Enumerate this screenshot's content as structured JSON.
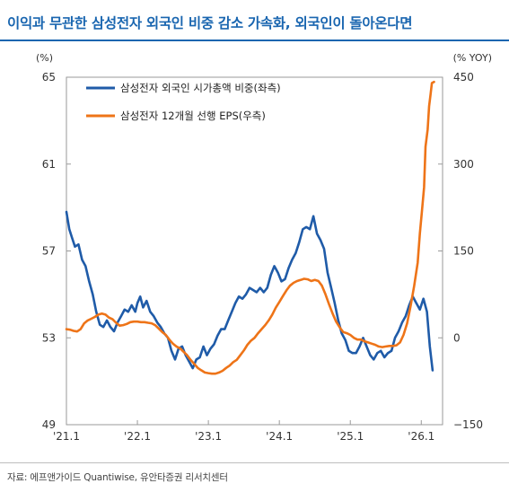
{
  "title": "이익과 무관한 삼성전자 외국인 비중 감소 가속화, 외국인이 돌아온다면",
  "source": "자료: 에프앤가이드 Quantiwise, 유안타증권 리서치센터",
  "chart_data": {
    "type": "line",
    "left_axis": {
      "unit": "(%)",
      "ylim": [
        49,
        65
      ],
      "ticks": [
        "65",
        "61",
        "57",
        "53",
        "49"
      ]
    },
    "right_axis": {
      "unit": "(% YOY)",
      "ylim": [
        -150,
        450
      ],
      "ticks": [
        "450",
        "300",
        "150",
        "0",
        "−150"
      ]
    },
    "x_ticks": [
      {
        "label": "'21.1",
        "t": 2021.0
      },
      {
        "label": "'22.1",
        "t": 2022.0
      },
      {
        "label": "'23.1",
        "t": 2023.0
      },
      {
        "label": "'24.1",
        "t": 2024.0
      },
      {
        "label": "'25.1",
        "t": 2025.0
      },
      {
        "label": "'26.1",
        "t": 2026.0
      }
    ],
    "xlim": [
      2021.0,
      2026.3
    ],
    "legend_position": "top-left",
    "series": [
      {
        "name": "삼성전자 외국인 시가총액 비중(좌측)",
        "axis": "left",
        "color": "#1f5ba8",
        "points": [
          [
            2021.0,
            58.8
          ],
          [
            2021.04,
            58.0
          ],
          [
            2021.08,
            57.6
          ],
          [
            2021.12,
            57.2
          ],
          [
            2021.17,
            57.3
          ],
          [
            2021.22,
            56.6
          ],
          [
            2021.27,
            56.3
          ],
          [
            2021.32,
            55.6
          ],
          [
            2021.37,
            55.0
          ],
          [
            2021.42,
            54.2
          ],
          [
            2021.47,
            53.6
          ],
          [
            2021.52,
            53.5
          ],
          [
            2021.57,
            53.8
          ],
          [
            2021.62,
            53.5
          ],
          [
            2021.67,
            53.3
          ],
          [
            2021.72,
            53.7
          ],
          [
            2021.77,
            54.0
          ],
          [
            2021.82,
            54.3
          ],
          [
            2021.87,
            54.2
          ],
          [
            2021.92,
            54.5
          ],
          [
            2021.97,
            54.2
          ],
          [
            2022.0,
            54.6
          ],
          [
            2022.04,
            54.9
          ],
          [
            2022.08,
            54.4
          ],
          [
            2022.13,
            54.7
          ],
          [
            2022.18,
            54.2
          ],
          [
            2022.23,
            54.0
          ],
          [
            2022.28,
            53.7
          ],
          [
            2022.33,
            53.5
          ],
          [
            2022.38,
            53.2
          ],
          [
            2022.43,
            53.0
          ],
          [
            2022.48,
            52.4
          ],
          [
            2022.53,
            52.0
          ],
          [
            2022.58,
            52.5
          ],
          [
            2022.63,
            52.6
          ],
          [
            2022.68,
            52.2
          ],
          [
            2022.73,
            51.9
          ],
          [
            2022.78,
            51.6
          ],
          [
            2022.83,
            52.0
          ],
          [
            2022.88,
            52.1
          ],
          [
            2022.93,
            52.6
          ],
          [
            2022.98,
            52.2
          ],
          [
            2023.03,
            52.5
          ],
          [
            2023.08,
            52.7
          ],
          [
            2023.13,
            53.1
          ],
          [
            2023.18,
            53.4
          ],
          [
            2023.23,
            53.4
          ],
          [
            2023.28,
            53.8
          ],
          [
            2023.33,
            54.2
          ],
          [
            2023.38,
            54.6
          ],
          [
            2023.43,
            54.9
          ],
          [
            2023.48,
            54.8
          ],
          [
            2023.53,
            55.0
          ],
          [
            2023.58,
            55.3
          ],
          [
            2023.63,
            55.2
          ],
          [
            2023.68,
            55.1
          ],
          [
            2023.73,
            55.3
          ],
          [
            2023.78,
            55.1
          ],
          [
            2023.83,
            55.3
          ],
          [
            2023.88,
            55.9
          ],
          [
            2023.93,
            56.3
          ],
          [
            2023.98,
            56.0
          ],
          [
            2024.03,
            55.6
          ],
          [
            2024.08,
            55.7
          ],
          [
            2024.13,
            56.2
          ],
          [
            2024.18,
            56.6
          ],
          [
            2024.23,
            56.9
          ],
          [
            2024.28,
            57.4
          ],
          [
            2024.33,
            58.0
          ],
          [
            2024.38,
            58.1
          ],
          [
            2024.43,
            58.0
          ],
          [
            2024.48,
            58.6
          ],
          [
            2024.53,
            57.8
          ],
          [
            2024.58,
            57.5
          ],
          [
            2024.63,
            57.1
          ],
          [
            2024.68,
            56.0
          ],
          [
            2024.73,
            55.3
          ],
          [
            2024.78,
            54.6
          ],
          [
            2024.83,
            53.8
          ],
          [
            2024.88,
            53.2
          ],
          [
            2024.93,
            52.9
          ],
          [
            2024.98,
            52.4
          ],
          [
            2025.03,
            52.3
          ],
          [
            2025.08,
            52.3
          ],
          [
            2025.13,
            52.6
          ],
          [
            2025.18,
            53.0
          ],
          [
            2025.23,
            52.6
          ],
          [
            2025.28,
            52.2
          ],
          [
            2025.33,
            52.0
          ],
          [
            2025.38,
            52.3
          ],
          [
            2025.43,
            52.4
          ],
          [
            2025.48,
            52.1
          ],
          [
            2025.53,
            52.3
          ],
          [
            2025.58,
            52.4
          ],
          [
            2025.63,
            53.0
          ],
          [
            2025.68,
            53.3
          ],
          [
            2025.73,
            53.7
          ],
          [
            2025.78,
            54.0
          ],
          [
            2025.83,
            54.5
          ],
          [
            2025.88,
            54.9
          ],
          [
            2025.93,
            54.6
          ],
          [
            2025.98,
            54.3
          ],
          [
            2026.03,
            54.8
          ],
          [
            2026.08,
            54.2
          ],
          [
            2026.12,
            52.6
          ],
          [
            2026.16,
            51.5
          ]
        ]
      },
      {
        "name": "삼성전자 12개월 선행 EPS(우측)",
        "axis": "right",
        "color": "#ee7418",
        "points": [
          [
            2021.0,
            15
          ],
          [
            2021.05,
            14
          ],
          [
            2021.1,
            12
          ],
          [
            2021.15,
            11
          ],
          [
            2021.2,
            15
          ],
          [
            2021.25,
            25
          ],
          [
            2021.3,
            30
          ],
          [
            2021.35,
            33
          ],
          [
            2021.4,
            36
          ],
          [
            2021.45,
            40
          ],
          [
            2021.5,
            42
          ],
          [
            2021.55,
            40
          ],
          [
            2021.6,
            35
          ],
          [
            2021.65,
            32
          ],
          [
            2021.7,
            26
          ],
          [
            2021.75,
            21
          ],
          [
            2021.8,
            22
          ],
          [
            2021.85,
            24
          ],
          [
            2021.9,
            27
          ],
          [
            2021.95,
            28
          ],
          [
            2022.0,
            28
          ],
          [
            2022.05,
            27
          ],
          [
            2022.1,
            27
          ],
          [
            2022.15,
            26
          ],
          [
            2022.2,
            25
          ],
          [
            2022.25,
            22
          ],
          [
            2022.3,
            16
          ],
          [
            2022.35,
            10
          ],
          [
            2022.4,
            5
          ],
          [
            2022.45,
            -3
          ],
          [
            2022.5,
            -10
          ],
          [
            2022.55,
            -15
          ],
          [
            2022.6,
            -18
          ],
          [
            2022.65,
            -24
          ],
          [
            2022.7,
            -30
          ],
          [
            2022.75,
            -38
          ],
          [
            2022.8,
            -45
          ],
          [
            2022.85,
            -52
          ],
          [
            2022.9,
            -56
          ],
          [
            2022.95,
            -60
          ],
          [
            2023.0,
            -61
          ],
          [
            2023.05,
            -62
          ],
          [
            2023.1,
            -62
          ],
          [
            2023.15,
            -60
          ],
          [
            2023.2,
            -57
          ],
          [
            2023.25,
            -52
          ],
          [
            2023.3,
            -48
          ],
          [
            2023.35,
            -42
          ],
          [
            2023.4,
            -38
          ],
          [
            2023.45,
            -30
          ],
          [
            2023.5,
            -22
          ],
          [
            2023.55,
            -12
          ],
          [
            2023.6,
            -5
          ],
          [
            2023.65,
            0
          ],
          [
            2023.7,
            8
          ],
          [
            2023.75,
            15
          ],
          [
            2023.8,
            22
          ],
          [
            2023.85,
            30
          ],
          [
            2023.9,
            40
          ],
          [
            2023.95,
            52
          ],
          [
            2024.0,
            62
          ],
          [
            2024.05,
            72
          ],
          [
            2024.1,
            82
          ],
          [
            2024.15,
            90
          ],
          [
            2024.2,
            95
          ],
          [
            2024.25,
            98
          ],
          [
            2024.3,
            100
          ],
          [
            2024.35,
            102
          ],
          [
            2024.4,
            101
          ],
          [
            2024.45,
            98
          ],
          [
            2024.5,
            100
          ],
          [
            2024.55,
            98
          ],
          [
            2024.6,
            90
          ],
          [
            2024.65,
            75
          ],
          [
            2024.7,
            58
          ],
          [
            2024.75,
            42
          ],
          [
            2024.8,
            28
          ],
          [
            2024.85,
            18
          ],
          [
            2024.9,
            10
          ],
          [
            2024.95,
            8
          ],
          [
            2025.0,
            5
          ],
          [
            2025.05,
            0
          ],
          [
            2025.1,
            -3
          ],
          [
            2025.15,
            -3
          ],
          [
            2025.2,
            -6
          ],
          [
            2025.25,
            -8
          ],
          [
            2025.3,
            -10
          ],
          [
            2025.35,
            -12
          ],
          [
            2025.4,
            -15
          ],
          [
            2025.45,
            -16
          ],
          [
            2025.5,
            -15
          ],
          [
            2025.55,
            -14
          ],
          [
            2025.6,
            -14
          ],
          [
            2025.65,
            -13
          ],
          [
            2025.7,
            -8
          ],
          [
            2025.75,
            5
          ],
          [
            2025.8,
            25
          ],
          [
            2025.85,
            55
          ],
          [
            2025.9,
            90
          ],
          [
            2025.95,
            130
          ],
          [
            2025.98,
            180
          ],
          [
            2026.01,
            220
          ],
          [
            2026.04,
            260
          ],
          [
            2026.06,
            330
          ],
          [
            2026.09,
            360
          ],
          [
            2026.11,
            400
          ],
          [
            2026.13,
            420
          ],
          [
            2026.15,
            440
          ],
          [
            2026.18,
            442
          ]
        ]
      }
    ]
  }
}
